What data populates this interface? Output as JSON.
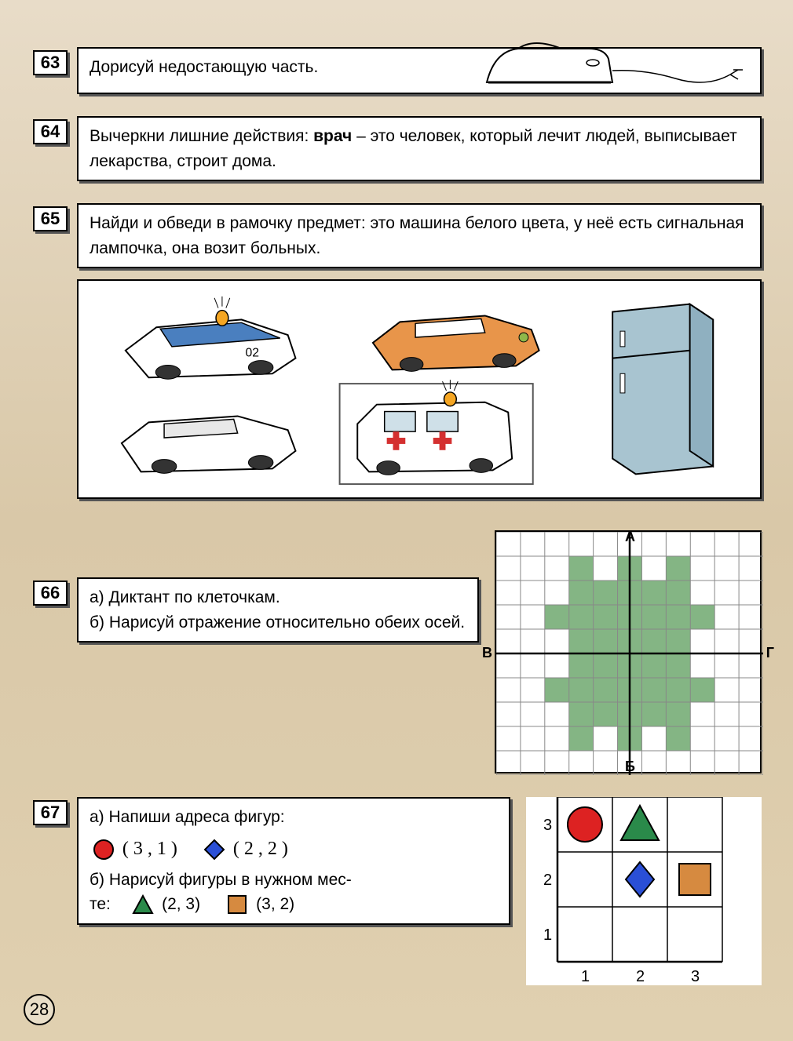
{
  "page_number": "28",
  "tasks": {
    "t63": {
      "num": "63",
      "text": "Дорисуй недостающую часть."
    },
    "t64": {
      "num": "64",
      "text_prefix": "Вычеркни лишние действия: ",
      "bold": "врач",
      "text_rest": " – это человек, который лечит людей, выписывает лекарства, строит дома."
    },
    "t65": {
      "num": "65",
      "text": "Найди и обведи в рамочку предмет: это машина белого цвета, у неё есть сигнальная лампочка, она возит больных."
    },
    "t66": {
      "num": "66",
      "line_a": "а) Диктант по клеточкам.",
      "line_b": "б) Нарисуй отражение относительно обеих осей.",
      "grid": {
        "cols": 11,
        "rows": 10,
        "cell": 30,
        "labels": {
          "A": "А",
          "B": "Б",
          "V": "В",
          "G": "Г"
        },
        "fill_color": "#6fa86f",
        "axis_row": 5,
        "axis_col": 5,
        "filled_cells": [
          [
            3,
            1
          ],
          [
            3,
            2
          ],
          [
            4,
            2
          ],
          [
            5,
            1
          ],
          [
            5,
            2
          ],
          [
            6,
            2
          ],
          [
            7,
            1
          ],
          [
            7,
            2
          ],
          [
            2,
            3
          ],
          [
            3,
            3
          ],
          [
            4,
            3
          ],
          [
            5,
            3
          ],
          [
            6,
            3
          ],
          [
            7,
            3
          ],
          [
            8,
            3
          ],
          [
            3,
            4
          ],
          [
            4,
            4
          ],
          [
            5,
            4
          ],
          [
            6,
            4
          ],
          [
            7,
            4
          ],
          [
            3,
            5
          ],
          [
            4,
            5
          ],
          [
            5,
            5
          ],
          [
            6,
            5
          ],
          [
            7,
            5
          ],
          [
            2,
            6
          ],
          [
            3,
            6
          ],
          [
            4,
            6
          ],
          [
            5,
            6
          ],
          [
            6,
            6
          ],
          [
            7,
            6
          ],
          [
            8,
            6
          ],
          [
            3,
            7
          ],
          [
            3,
            8
          ],
          [
            4,
            7
          ],
          [
            5,
            7
          ],
          [
            5,
            8
          ],
          [
            6,
            7
          ],
          [
            7,
            7
          ],
          [
            7,
            8
          ]
        ]
      }
    },
    "t67": {
      "num": "67",
      "line_a": "а) Напиши адреса фигур:",
      "circle_coords": "( 3 , 1 )",
      "diamond_coords": "( 2 , 2 )",
      "line_b": "б) Нарисуй фигуры в нужном мес-",
      "line_b2": "те:",
      "triangle_label": "(2, 3)",
      "square_label": "(3, 2)",
      "grid": {
        "cols": 3,
        "rows": 3,
        "cell": 70,
        "x_labels": [
          "1",
          "2",
          "3"
        ],
        "y_labels": [
          "1",
          "2",
          "3"
        ],
        "shapes": {
          "circle": {
            "col": 1,
            "row": 3,
            "color": "#d22",
            "stroke": "#000"
          },
          "triangle": {
            "col": 2,
            "row": 3,
            "color": "#2a8a4a",
            "stroke": "#000"
          },
          "diamond": {
            "col": 2,
            "row": 2,
            "color": "#2a4fd6",
            "stroke": "#000"
          },
          "square": {
            "col": 3,
            "row": 2,
            "color": "#d68a40",
            "stroke": "#000"
          }
        }
      }
    }
  },
  "colors": {
    "police_blue": "#4a7fbf",
    "siren_orange": "#f5a623",
    "taxi_orange": "#e8954a",
    "fridge_blue": "#a8c4d0",
    "cross_red": "#d43030",
    "grid_line": "#888",
    "axis_line": "#000"
  }
}
